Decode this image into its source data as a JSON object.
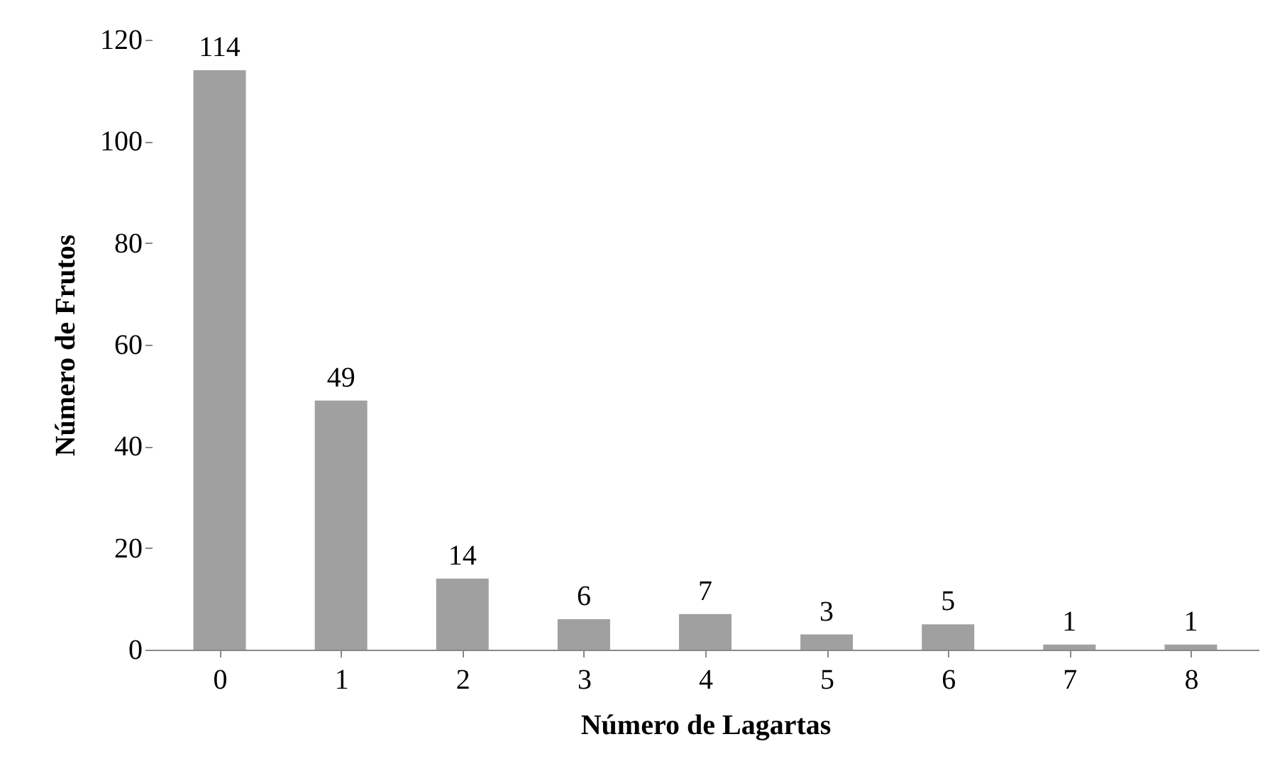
{
  "chart_data": {
    "type": "bar",
    "xlabel": "Número de Lagartas",
    "ylabel": "Número de Frutos",
    "categories": [
      "0",
      "1",
      "2",
      "3",
      "4",
      "5",
      "6",
      "7",
      "8"
    ],
    "values": [
      114,
      49,
      14,
      6,
      7,
      3,
      5,
      1,
      1
    ],
    "color": "#a0a0a0",
    "ylim": [
      0,
      120
    ],
    "yticks": [
      0,
      20,
      40,
      60,
      80,
      100,
      120
    ],
    "data_labels": true,
    "grid": false
  }
}
